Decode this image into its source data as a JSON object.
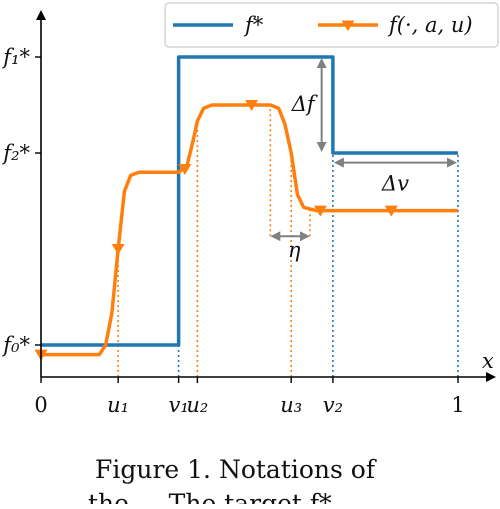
{
  "chart_data": {
    "type": "line",
    "xlabel": "x",
    "ylabel": "",
    "xlim": [
      0,
      1
    ],
    "ylim": [
      0,
      1.12
    ],
    "x_ticks": [
      {
        "x": 0,
        "label": "0",
        "italic": false
      },
      {
        "x": 0.185,
        "label": "u₁",
        "italic": true
      },
      {
        "x": 0.33,
        "label": "v₁",
        "italic": true
      },
      {
        "x": 0.375,
        "label": "u₂",
        "italic": true
      },
      {
        "x": 0.6,
        "label": "u₃",
        "italic": true
      },
      {
        "x": 0.7,
        "label": "v₂",
        "italic": true
      },
      {
        "x": 1,
        "label": "1",
        "italic": false
      }
    ],
    "y_ticks": [
      {
        "y": 1.0,
        "label": "f₁*"
      },
      {
        "y": 0.7,
        "label": "f₂*"
      },
      {
        "y": 0.1,
        "label": "f₀*"
      }
    ],
    "series": [
      {
        "name": "f*",
        "color": "#1f77b4",
        "marker": "none",
        "points": [
          [
            0,
            0.1
          ],
          [
            0.33,
            0.1
          ],
          [
            0.33,
            1.0
          ],
          [
            0.7,
            1.0
          ],
          [
            0.7,
            0.7
          ],
          [
            1.0,
            0.7
          ]
        ]
      },
      {
        "name": "f(·, a, u)",
        "color": "#ff7f0e",
        "marker": "triangle-down",
        "points": [
          [
            0.0,
            0.07
          ],
          [
            0.14,
            0.07
          ],
          [
            0.155,
            0.1
          ],
          [
            0.17,
            0.2
          ],
          [
            0.185,
            0.4
          ],
          [
            0.2,
            0.58
          ],
          [
            0.215,
            0.63
          ],
          [
            0.235,
            0.64
          ],
          [
            0.33,
            0.64
          ],
          [
            0.35,
            0.66
          ],
          [
            0.365,
            0.74
          ],
          [
            0.375,
            0.8
          ],
          [
            0.39,
            0.84
          ],
          [
            0.41,
            0.85
          ],
          [
            0.55,
            0.85
          ],
          [
            0.57,
            0.84
          ],
          [
            0.585,
            0.79
          ],
          [
            0.6,
            0.7
          ],
          [
            0.615,
            0.57
          ],
          [
            0.63,
            0.53
          ],
          [
            0.66,
            0.52
          ],
          [
            1.0,
            0.52
          ]
        ],
        "marker_points": [
          [
            0.0,
            0.07
          ],
          [
            0.185,
            0.4
          ],
          [
            0.345,
            0.65
          ],
          [
            0.505,
            0.85
          ],
          [
            0.67,
            0.52
          ],
          [
            0.84,
            0.52
          ]
        ]
      }
    ],
    "annotations": [
      {
        "type": "vline",
        "x": 0.33,
        "ymin": 0.0,
        "ymax": 0.1,
        "color": "#1f77b4"
      },
      {
        "type": "vline",
        "x": 0.7,
        "ymin": 0.0,
        "ymax": 0.7,
        "color": "#1f77b4"
      },
      {
        "type": "vline",
        "x": 1.0,
        "ymin": 0.0,
        "ymax": 0.7,
        "color": "#1f77b4"
      },
      {
        "type": "vline",
        "x": 0.185,
        "ymin": 0.0,
        "ymax": 0.4,
        "color": "#ff7f0e"
      },
      {
        "type": "vline",
        "x": 0.375,
        "ymin": 0.0,
        "ymax": 0.8,
        "color": "#ff7f0e"
      },
      {
        "type": "vline",
        "x": 0.6,
        "ymin": 0.0,
        "ymax": 0.7,
        "color": "#ff7f0e"
      },
      {
        "type": "vline",
        "x": 0.55,
        "ymin": 0.44,
        "ymax": 0.85,
        "color": "#ff7f0e"
      },
      {
        "type": "vline",
        "x": 0.645,
        "ymin": 0.44,
        "ymax": 0.52,
        "color": "#ff7f0e"
      }
    ],
    "arrows": {
      "delta_f": {
        "label": "Δf",
        "x": 0.685,
        "from": 1.0,
        "to": 0.7
      },
      "delta_v": {
        "label": "Δv",
        "y": 0.67,
        "from": 0.7,
        "to": 1.0
      },
      "eta": {
        "label": "η",
        "y": 0.44,
        "from": 0.55,
        "to": 0.645
      }
    },
    "legend": {
      "position": "top-right",
      "frame": true
    },
    "grid": false
  },
  "caption": {
    "line1": "Figure 1. Notations of",
    "line2": "the ...   The target f*"
  }
}
